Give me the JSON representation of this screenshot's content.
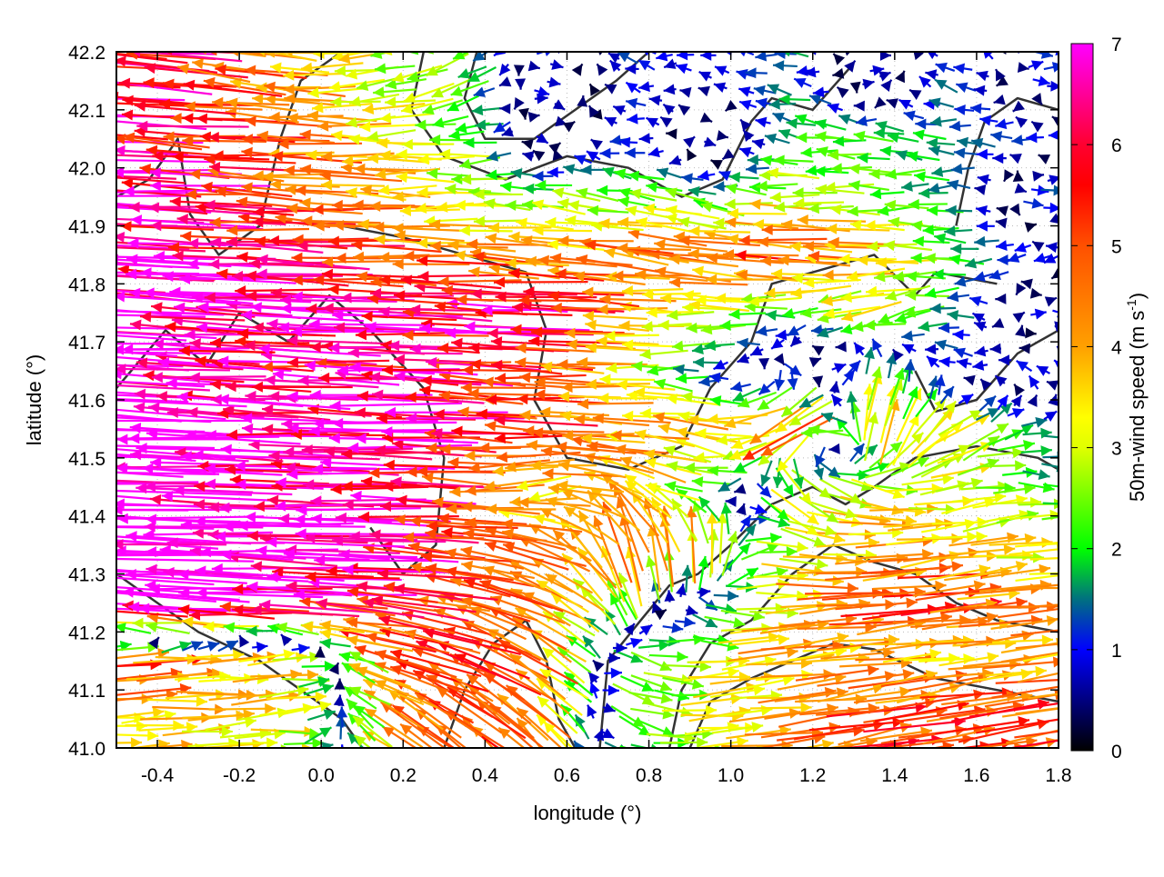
{
  "chart_data": {
    "type": "vector-field",
    "xlabel": "longitude (°)",
    "ylabel": "latitude (°)",
    "xlim": [
      -0.5,
      1.8
    ],
    "ylim": [
      41.0,
      42.2
    ],
    "xticks": [
      "-0.4",
      "-0.2",
      "0.0",
      "0.2",
      "0.4",
      "0.6",
      "0.8",
      "1.0",
      "1.2",
      "1.4",
      "1.6",
      "1.8"
    ],
    "xtick_values": [
      -0.4,
      -0.2,
      0.0,
      0.2,
      0.4,
      0.6,
      0.8,
      1.0,
      1.2,
      1.4,
      1.6,
      1.8
    ],
    "yticks": [
      "41.0",
      "41.1",
      "41.2",
      "41.3",
      "41.4",
      "41.5",
      "41.6",
      "41.7",
      "41.8",
      "41.9",
      "42.0",
      "42.1",
      "42.2"
    ],
    "ytick_values": [
      41.0,
      41.1,
      41.2,
      41.3,
      41.4,
      41.5,
      41.6,
      41.7,
      41.8,
      41.9,
      42.0,
      42.1,
      42.2
    ],
    "grid": true,
    "colorbar": {
      "label": "50m-wind speed (m s",
      "label_sup": "-1",
      "label_end": ")",
      "range": [
        0,
        7
      ],
      "ticks": [
        "0",
        "1",
        "2",
        "3",
        "4",
        "5",
        "6",
        "7"
      ],
      "tick_values": [
        0,
        1,
        2,
        3,
        4,
        5,
        6,
        7
      ],
      "palette": [
        [
          0,
          "#000000"
        ],
        [
          1,
          "#0000ff"
        ],
        [
          1.5,
          "#007080"
        ],
        [
          2,
          "#00ff00"
        ],
        [
          3,
          "#e0ff00"
        ],
        [
          3.3,
          "#ffff00"
        ],
        [
          4,
          "#ffa000"
        ],
        [
          5,
          "#ff5000"
        ],
        [
          5.6,
          "#ff0000"
        ],
        [
          6,
          "#ff0030"
        ],
        [
          7,
          "#ff00ff"
        ]
      ]
    },
    "wind_grid": {
      "lon": [
        -0.45,
        -0.25,
        -0.05,
        0.15,
        0.35,
        0.55,
        0.75,
        0.95,
        1.15,
        1.35,
        1.55,
        1.75
      ],
      "lat": [
        42.15,
        42.05,
        41.95,
        41.85,
        41.75,
        41.65,
        41.55,
        41.45,
        41.35,
        41.25,
        41.15,
        41.05
      ],
      "uv": [
        [
          [
            -6.5,
            0.5
          ],
          [
            -5,
            0.5
          ],
          [
            -4,
            0.3
          ],
          [
            -3,
            -0.5
          ],
          [
            -2,
            -1
          ],
          [
            1,
            0
          ],
          [
            -1,
            0.3
          ],
          [
            -0.8,
            0
          ],
          [
            -1.5,
            0.3
          ],
          [
            1,
            0
          ],
          [
            -1.5,
            0.5
          ],
          [
            1,
            0
          ]
        ],
        [
          [
            -6.5,
            0.3
          ],
          [
            -5.5,
            0.3
          ],
          [
            -4.5,
            0.2
          ],
          [
            -3.5,
            0
          ],
          [
            -2.5,
            -0.3
          ],
          [
            0.8,
            0
          ],
          [
            -1.2,
            0
          ],
          [
            1,
            0
          ],
          [
            -2,
            0.3
          ],
          [
            -2,
            0.2
          ],
          [
            -1.5,
            0
          ],
          [
            -1,
            0
          ]
        ],
        [
          [
            -7,
            0.3
          ],
          [
            -6,
            0.3
          ],
          [
            -5,
            0.2
          ],
          [
            -4,
            0.1
          ],
          [
            -3,
            0
          ],
          [
            -2.5,
            0.3
          ],
          [
            -2.5,
            0.5
          ],
          [
            -2,
            0.3
          ],
          [
            -3,
            0
          ],
          [
            -2.5,
            0
          ],
          [
            -1.5,
            0
          ],
          [
            1.5,
            0
          ]
        ],
        [
          [
            -7,
            0.4
          ],
          [
            -6.5,
            0.3
          ],
          [
            -6,
            0.3
          ],
          [
            -5,
            0.2
          ],
          [
            -4.5,
            0.2
          ],
          [
            -4,
            0.3
          ],
          [
            -4.5,
            0.5
          ],
          [
            -5,
            0.4
          ],
          [
            -5,
            0.3
          ],
          [
            -4,
            0.2
          ],
          [
            -2,
            0
          ],
          [
            -1,
            0
          ]
        ],
        [
          [
            -7.5,
            0.3
          ],
          [
            -7,
            0.3
          ],
          [
            -7,
            0.3
          ],
          [
            -6.5,
            0.2
          ],
          [
            -6,
            0.2
          ],
          [
            -6.5,
            0.3
          ],
          [
            -4,
            0.2
          ],
          [
            -3,
            0
          ],
          [
            -2,
            0
          ],
          [
            -3,
            -1
          ],
          [
            -1.5,
            0
          ],
          [
            1,
            0
          ]
        ],
        [
          [
            -7,
            0.4
          ],
          [
            -6.5,
            0.3
          ],
          [
            -6,
            0.3
          ],
          [
            -6.5,
            0.2
          ],
          [
            -6,
            0.3
          ],
          [
            -5,
            0.2
          ],
          [
            -3,
            0
          ],
          [
            -1,
            0
          ],
          [
            1,
            -1
          ],
          [
            1,
            2
          ],
          [
            -1,
            0
          ],
          [
            -1,
            0.5
          ]
        ],
        [
          [
            -7.5,
            0.3
          ],
          [
            -7.5,
            0.3
          ],
          [
            -7,
            0.2
          ],
          [
            -6.5,
            0.2
          ],
          [
            -6,
            0.2
          ],
          [
            -5,
            0.2
          ],
          [
            -4,
            0.2
          ],
          [
            -4,
            1
          ],
          [
            -5,
            -3
          ],
          [
            0.5,
            4
          ],
          [
            3,
            2
          ],
          [
            1.5,
            0
          ]
        ],
        [
          [
            -7.5,
            0.3
          ],
          [
            -7.5,
            0.2
          ],
          [
            -7,
            0.2
          ],
          [
            -7,
            0.1
          ],
          [
            -5,
            0.3
          ],
          [
            -3.5,
            -1
          ],
          [
            -4,
            2
          ],
          [
            -2,
            0
          ],
          [
            2,
            -2
          ],
          [
            3,
            -1
          ],
          [
            3,
            0.5
          ],
          [
            2,
            0
          ]
        ],
        [
          [
            -8,
            0.2
          ],
          [
            -8,
            0.2
          ],
          [
            -7.5,
            0.2
          ],
          [
            -7,
            0.2
          ],
          [
            -5,
            0.5
          ],
          [
            -4,
            1.5
          ],
          [
            -1,
            5
          ],
          [
            0,
            4
          ],
          [
            3,
            -1
          ],
          [
            4,
            0.5
          ],
          [
            4,
            0.5
          ],
          [
            3,
            0.3
          ]
        ],
        [
          [
            -8,
            0.3
          ],
          [
            -7.5,
            0.3
          ],
          [
            -7,
            0.2
          ],
          [
            -6,
            0.5
          ],
          [
            -5,
            1
          ],
          [
            -4,
            2
          ],
          [
            -1,
            2
          ],
          [
            1,
            -1
          ],
          [
            4,
            0.3
          ],
          [
            5,
            0.5
          ],
          [
            5,
            0.5
          ],
          [
            4,
            0.3
          ]
        ],
        [
          [
            5,
            0.3
          ],
          [
            4,
            0.2
          ],
          [
            3.5,
            0.2
          ],
          [
            -4,
            1
          ],
          [
            -5,
            2
          ],
          [
            -4,
            2.5
          ],
          [
            2,
            -1
          ],
          [
            3,
            0.3
          ],
          [
            4,
            0.3
          ],
          [
            4,
            0.3
          ],
          [
            4,
            0.5
          ],
          [
            4,
            0.4
          ]
        ],
        [
          [
            4,
            0.3
          ],
          [
            3.5,
            0.2
          ],
          [
            3,
            0.2
          ],
          [
            -3,
            2
          ],
          [
            -4,
            3
          ],
          [
            -3,
            3
          ],
          [
            2,
            -1
          ],
          [
            3,
            0.3
          ],
          [
            4,
            0.5
          ],
          [
            5,
            0.8
          ],
          [
            5,
            0.8
          ],
          [
            5,
            0.8
          ]
        ]
      ]
    },
    "contours": [
      [
        [
          -0.5,
          41.95
        ],
        [
          -0.42,
          41.98
        ],
        [
          -0.35,
          42.05
        ],
        [
          -0.32,
          41.92
        ],
        [
          -0.25,
          41.85
        ],
        [
          -0.15,
          41.9
        ],
        [
          -0.1,
          42.05
        ],
        [
          -0.05,
          42.15
        ],
        [
          0.05,
          42.2
        ]
      ],
      [
        [
          -0.5,
          41.62
        ],
        [
          -0.38,
          41.72
        ],
        [
          -0.28,
          41.66
        ],
        [
          -0.2,
          41.75
        ],
        [
          -0.08,
          41.7
        ],
        [
          0.02,
          41.78
        ],
        [
          0.12,
          41.72
        ],
        [
          0.25,
          41.62
        ],
        [
          0.3,
          41.5
        ],
        [
          0.28,
          41.35
        ],
        [
          0.2,
          41.3
        ],
        [
          0.12,
          41.38
        ]
      ],
      [
        [
          0.05,
          41.9
        ],
        [
          0.2,
          41.88
        ],
        [
          0.35,
          41.85
        ],
        [
          0.5,
          41.82
        ],
        [
          0.55,
          41.72
        ],
        [
          0.52,
          41.6
        ],
        [
          0.6,
          41.5
        ],
        [
          0.75,
          41.48
        ],
        [
          0.88,
          41.52
        ],
        [
          0.95,
          41.62
        ],
        [
          1.05,
          41.7
        ],
        [
          1.1,
          41.8
        ],
        [
          1.2,
          41.82
        ],
        [
          1.35,
          41.85
        ],
        [
          1.45,
          41.78
        ],
        [
          1.5,
          41.82
        ],
        [
          1.65,
          41.8
        ]
      ],
      [
        [
          0.25,
          42.2
        ],
        [
          0.22,
          42.1
        ],
        [
          0.3,
          42.02
        ],
        [
          0.45,
          41.98
        ],
        [
          0.6,
          42.02
        ],
        [
          0.75,
          42.0
        ],
        [
          0.88,
          41.95
        ],
        [
          0.98,
          41.98
        ],
        [
          1.05,
          42.08
        ],
        [
          1.1,
          42.12
        ],
        [
          1.2,
          42.1
        ],
        [
          1.3,
          42.18
        ]
      ],
      [
        [
          0.38,
          42.2
        ],
        [
          0.35,
          42.12
        ],
        [
          0.4,
          42.05
        ],
        [
          0.52,
          42.05
        ],
        [
          0.62,
          42.1
        ],
        [
          0.72,
          42.15
        ],
        [
          0.8,
          42.2
        ]
      ],
      [
        [
          0.68,
          41.0
        ],
        [
          0.7,
          41.15
        ],
        [
          0.78,
          41.22
        ],
        [
          0.85,
          41.28
        ],
        [
          0.92,
          41.3
        ],
        [
          1.0,
          41.35
        ],
        [
          1.1,
          41.42
        ],
        [
          1.2,
          41.45
        ],
        [
          1.28,
          41.42
        ],
        [
          1.35,
          41.45
        ],
        [
          1.45,
          41.5
        ],
        [
          1.6,
          41.52
        ],
        [
          1.75,
          41.5
        ],
        [
          1.8,
          41.48
        ]
      ],
      [
        [
          0.85,
          41.0
        ],
        [
          0.88,
          41.1
        ],
        [
          0.95,
          41.18
        ],
        [
          1.05,
          41.22
        ],
        [
          1.15,
          41.3
        ],
        [
          1.25,
          41.35
        ],
        [
          1.35,
          41.32
        ],
        [
          1.45,
          41.3
        ],
        [
          1.55,
          41.25
        ],
        [
          1.65,
          41.22
        ],
        [
          1.8,
          41.2
        ]
      ],
      [
        [
          0.9,
          41.0
        ],
        [
          0.95,
          41.08
        ],
        [
          1.05,
          41.12
        ],
        [
          1.15,
          41.15
        ],
        [
          1.25,
          41.18
        ],
        [
          1.35,
          41.17
        ],
        [
          1.5,
          41.12
        ],
        [
          1.65,
          41.1
        ],
        [
          1.8,
          41.08
        ]
      ],
      [
        [
          -0.5,
          41.3
        ],
        [
          -0.4,
          41.25
        ],
        [
          -0.3,
          41.2
        ],
        [
          -0.15,
          41.15
        ],
        [
          -0.05,
          41.1
        ],
        [
          0.05,
          41.05
        ],
        [
          0.1,
          41.0
        ]
      ],
      [
        [
          0.3,
          41.0
        ],
        [
          0.35,
          41.1
        ],
        [
          0.42,
          41.18
        ],
        [
          0.5,
          41.22
        ],
        [
          0.55,
          41.15
        ],
        [
          0.58,
          41.05
        ],
        [
          0.62,
          41.0
        ]
      ],
      [
        [
          1.55,
          41.9
        ],
        [
          1.58,
          42.0
        ],
        [
          1.62,
          42.08
        ],
        [
          1.7,
          42.12
        ],
        [
          1.8,
          42.1
        ]
      ],
      [
        [
          1.45,
          41.65
        ],
        [
          1.5,
          41.58
        ],
        [
          1.6,
          41.6
        ],
        [
          1.7,
          41.68
        ],
        [
          1.8,
          41.72
        ]
      ]
    ]
  }
}
